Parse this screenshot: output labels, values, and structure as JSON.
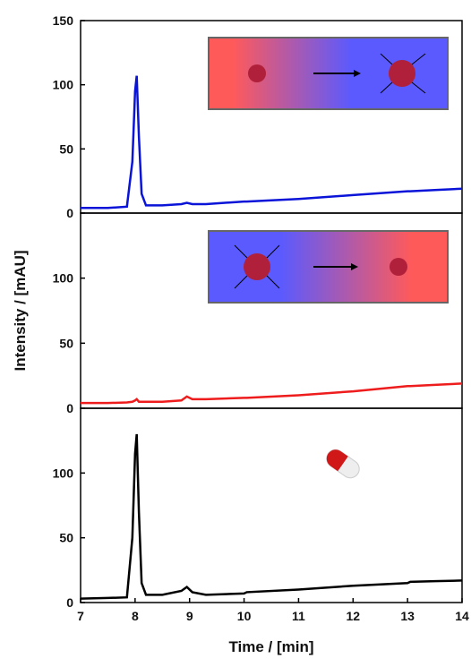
{
  "chart_data": [
    {
      "type": "line",
      "color": "#0a14d8",
      "xlim": [
        7,
        14
      ],
      "ylim": [
        0,
        150
      ],
      "yticks": [
        0,
        50,
        100,
        150
      ],
      "x": [
        7,
        7.5,
        7.85,
        7.95,
        8.0,
        8.03,
        8.07,
        8.12,
        8.2,
        8.5,
        8.85,
        8.95,
        9.05,
        9.3,
        10,
        10.05,
        11,
        12,
        13,
        13.05,
        13.5,
        14
      ],
      "values": [
        4,
        4,
        5,
        40,
        95,
        107,
        60,
        15,
        6,
        6,
        7,
        8,
        7,
        7,
        9,
        9,
        11,
        14,
        17,
        17,
        18,
        19
      ]
    },
    {
      "type": "line",
      "color": "#ee1c1c",
      "xlim": [
        7,
        14
      ],
      "ylim": [
        0,
        150
      ],
      "yticks": [
        0,
        50,
        100
      ],
      "ylabel": "Intensity / [mAU]",
      "x": [
        7,
        7.5,
        7.85,
        7.95,
        8.0,
        8.03,
        8.07,
        8.12,
        8.2,
        8.5,
        8.85,
        8.95,
        9.05,
        9.3,
        10,
        10.05,
        11,
        12,
        13,
        13.05,
        13.5,
        14
      ],
      "values": [
        4,
        4,
        4.5,
        5,
        6,
        7,
        5,
        5,
        5,
        5,
        6,
        9,
        7,
        7,
        8,
        8,
        10,
        13,
        17,
        17,
        18,
        19
      ]
    },
    {
      "type": "line",
      "color": "#000000",
      "xlim": [
        7,
        14
      ],
      "ylim": [
        0,
        150
      ],
      "yticks": [
        0,
        50,
        100
      ],
      "xticks": [
        7,
        8,
        9,
        10,
        11,
        12,
        13,
        14
      ],
      "xlabel": "Time / [min]",
      "x": [
        7,
        7.5,
        7.85,
        7.95,
        8.0,
        8.03,
        8.07,
        8.12,
        8.2,
        8.5,
        8.85,
        8.95,
        9.05,
        9.3,
        10,
        10.05,
        11,
        12,
        13,
        13.05,
        13.5,
        14
      ],
      "values": [
        3,
        3.5,
        4,
        50,
        115,
        130,
        70,
        15,
        6,
        6,
        9,
        12,
        8,
        6,
        7,
        8,
        10,
        13,
        15,
        16,
        16.5,
        17
      ]
    }
  ]
}
